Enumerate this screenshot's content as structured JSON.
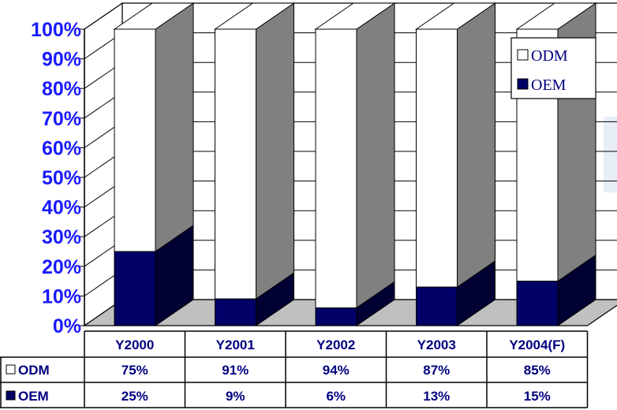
{
  "chart_data": {
    "type": "bar",
    "stacked": true,
    "percent": true,
    "three_d": true,
    "categories": [
      "Y2000",
      "Y2001",
      "Y2002",
      "Y2003",
      "Y2004(F)"
    ],
    "series": [
      {
        "name": "ODM",
        "values": [
          75,
          91,
          94,
          87,
          85
        ],
        "labels": [
          "75%",
          "91%",
          "94%",
          "87%",
          "85%"
        ],
        "color": "#ffffff"
      },
      {
        "name": "OEM",
        "values": [
          25,
          9,
          6,
          13,
          15
        ],
        "labels": [
          "25%",
          "9%",
          "6%",
          "13%",
          "15%"
        ],
        "color": "#000066"
      }
    ],
    "yticks": [
      "0%",
      "10%",
      "20%",
      "30%",
      "40%",
      "50%",
      "60%",
      "70%",
      "80%",
      "90%",
      "100%"
    ],
    "ylim": [
      0,
      100
    ],
    "grid": true,
    "legend_position": "top-right",
    "data_table": true,
    "colors": {
      "axis_label": "#1a1aff",
      "table_text": "#000080",
      "side_face": "#808080",
      "oem_side": "#000033"
    }
  }
}
